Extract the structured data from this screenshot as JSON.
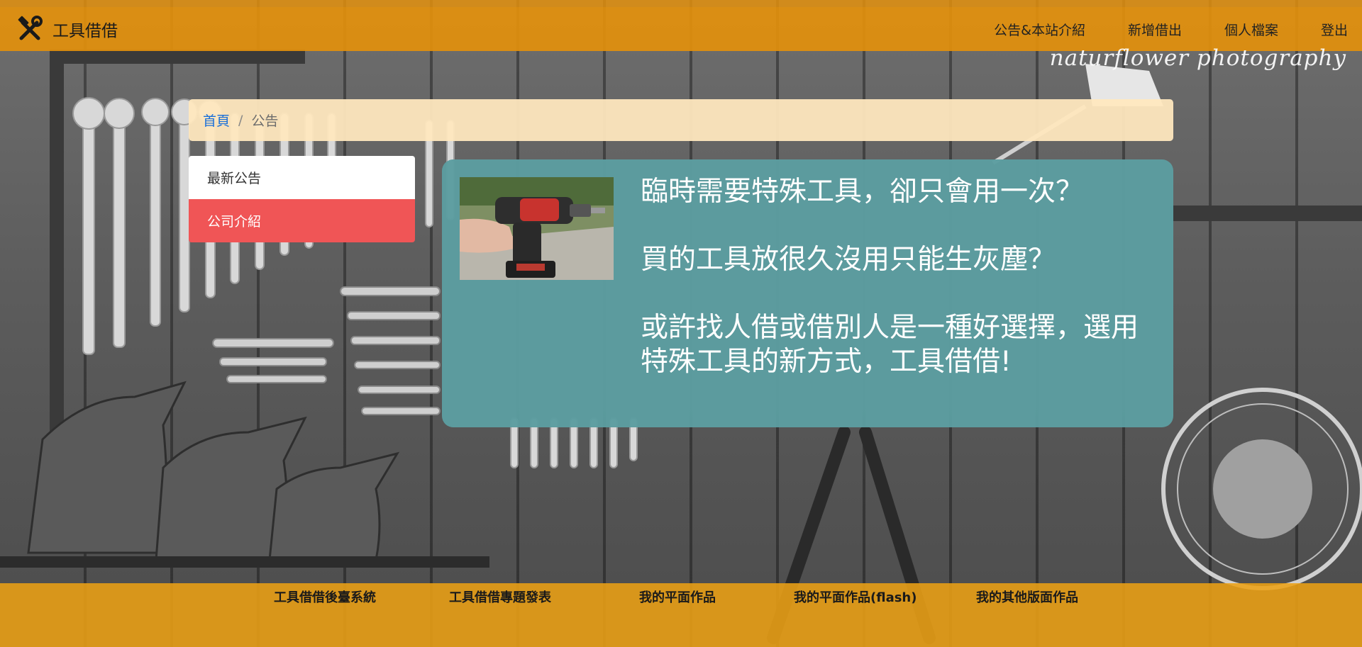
{
  "navbar": {
    "brand": "工具借借",
    "links": [
      "公告&本站介紹",
      "新增借出",
      "個人檔案",
      "登出"
    ]
  },
  "watermark": "naturflower photography",
  "breadcrumb": {
    "home": "首頁",
    "separator": "/",
    "current": "公告"
  },
  "side_menu": {
    "items": [
      "最新公告",
      "公司介紹"
    ],
    "active_index": 1
  },
  "main": {
    "paragraphs": [
      "臨時需要特殊工具，卻只會用一次？",
      "買的工具放很久沒用只能生灰塵？",
      "或許找人借或借別人是一種好選擇，選用特殊工具的新方式，工具借借!"
    ]
  },
  "footer": {
    "links": [
      "工具借借後臺系統",
      "工具借借專題發表",
      "我的平面作品",
      "我的平面作品(flash)",
      "我的其他版面作品"
    ]
  },
  "colors": {
    "navbar": "#e6910a",
    "breadcrumb_bg": "#ffe8be",
    "link_blue": "#1a6fd8",
    "active_menu": "#f05556",
    "panel": "#5c9da0",
    "footer": "#eca014"
  },
  "icons": {
    "logo": "crossed-hammer-wrench-icon"
  }
}
